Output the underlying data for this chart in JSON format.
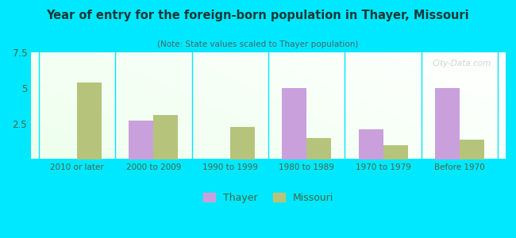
{
  "title": "Year of entry for the foreign-born population in Thayer, Missouri",
  "subtitle": "(Note: State values scaled to Thayer population)",
  "categories": [
    "2010 or later",
    "2000 to 2009",
    "1990 to 1999",
    "1980 to 1989",
    "1970 to 1979",
    "Before 1970"
  ],
  "thayer_values": [
    0,
    2.7,
    0,
    5.0,
    2.1,
    5.0
  ],
  "missouri_values": [
    5.4,
    3.1,
    2.3,
    1.5,
    1.0,
    1.4
  ],
  "thayer_color": "#c9a0dc",
  "missouri_color": "#b5c47a",
  "ylim": [
    0,
    7.5
  ],
  "yticks": [
    0,
    2.5,
    5,
    7.5
  ],
  "background_outer": "#00e8ff",
  "bar_width": 0.32,
  "legend_thayer": "Thayer",
  "legend_missouri": "Missouri",
  "watermark": "City-Data.com"
}
